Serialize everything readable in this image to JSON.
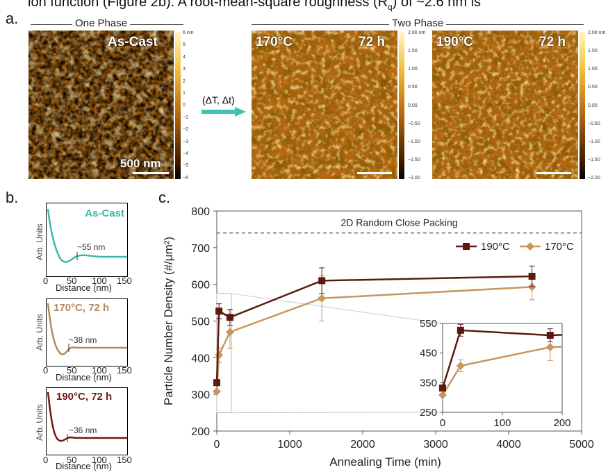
{
  "caption_fragment": "ion function (Figure 2b). A root-mean-square roughness (R",
  "caption_fragment_tail": ") of ~2.6 nm is",
  "panel_a": {
    "letter": "a.",
    "one_phase_label": "One Phase",
    "two_phase_label": "Two Phase",
    "transition_label": "(ΔT, Δt)",
    "images": [
      {
        "label_left": "As-Cast",
        "label_right": "",
        "scale_label": "500 nm",
        "colorbar_ticks": [
          "6 nm",
          "5",
          "4",
          "3",
          "2",
          "1",
          "0",
          "−1",
          "−2",
          "−3",
          "−4",
          "−5",
          "−6"
        ]
      },
      {
        "label_left": "170°C",
        "label_right": "72 h",
        "scale_label": "",
        "colorbar_ticks": [
          "2.00 nm",
          "1.50",
          "1.00",
          "0.50",
          "0.00",
          "−0.50",
          "−1.00",
          "−1.50",
          "−2.00"
        ]
      },
      {
        "label_left": "190°C",
        "label_right": "72 h",
        "scale_label": "",
        "colorbar_ticks": [
          "2.00 nm",
          "1.50",
          "1.00",
          "0.50",
          "0.00",
          "−0.50",
          "−1.00",
          "−1.50",
          "−2.00"
        ]
      }
    ],
    "colors": {
      "afm_dark": "#3b1e00",
      "afm_mid": "#b86a10",
      "afm_light": "#ffe080",
      "arrow": "#3cc3b4"
    }
  },
  "panel_b": {
    "letter": "b.",
    "ylabel": "Arb. Units",
    "xlabel": "Distance (nm)",
    "xticks": [
      "0",
      "50",
      "100",
      "150"
    ],
    "plots": [
      {
        "title": "As-Cast",
        "annotation": "~55 nm",
        "color": "#3bb8a8"
      },
      {
        "title": "170°C, 72 h",
        "annotation": "~38 nm",
        "color": "#b48a5a"
      },
      {
        "title": "190°C, 72 h",
        "annotation": "~36 nm",
        "color": "#6b1a0c"
      }
    ]
  },
  "panel_c": {
    "letter": "c."
  },
  "chart_data": {
    "type": "line",
    "title": "",
    "xlabel": "Annealing Time (min)",
    "ylabel": "Particle Number Density (#/μm²)",
    "xlim": [
      0,
      5000
    ],
    "ylim": [
      200,
      800
    ],
    "xticks": [
      0,
      1000,
      2000,
      3000,
      4000,
      5000
    ],
    "yticks": [
      200,
      300,
      400,
      500,
      600,
      700,
      800
    ],
    "reference_line": {
      "label": "2D Random Close Packing",
      "y": 740
    },
    "legend": {
      "placement": "top-right"
    },
    "series": [
      {
        "name": "190°C",
        "color": "#5a1a0e",
        "marker": "square",
        "x": [
          0,
          30,
          180,
          1440,
          4320
        ],
        "y": [
          332,
          527,
          510,
          610,
          622
        ],
        "err": [
          0,
          20,
          22,
          35,
          28
        ]
      },
      {
        "name": "170°C",
        "color": "#c8955f",
        "marker": "diamond",
        "x": [
          0,
          30,
          180,
          1440,
          4320
        ],
        "y": [
          308,
          407,
          470,
          562,
          593
        ],
        "err": [
          0,
          20,
          45,
          62,
          35
        ]
      }
    ],
    "inset": {
      "xlim": [
        0,
        200
      ],
      "ylim": [
        250,
        550
      ],
      "xticks": [
        0,
        100,
        200
      ],
      "yticks": [
        250,
        350,
        450,
        550
      ]
    }
  }
}
